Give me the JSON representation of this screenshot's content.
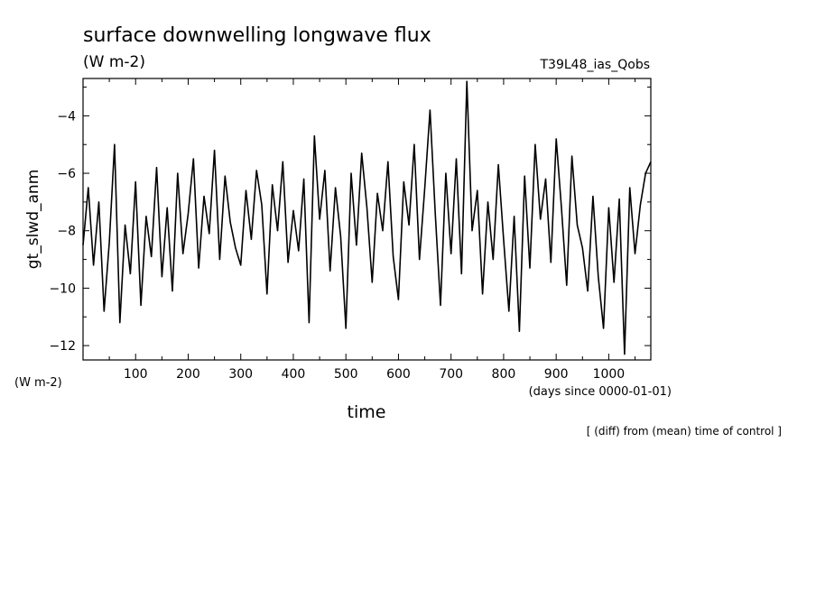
{
  "header": {
    "title": "surface downwelling longwave flux",
    "units": "(W m-2)",
    "run_id": "T39L48_ias_Qobs"
  },
  "footer": {
    "y_units": "(W m-2)",
    "x_units": "(days since 0000-01-01)",
    "x_title": "time",
    "note": "[ (diff) from (mean) time of control ]"
  },
  "chart_data": {
    "type": "line",
    "title": "surface downwelling longwave flux",
    "subtitle": "(W m-2)",
    "xlabel": "time",
    "ylabel": "gt_slwd_anm",
    "xlim": [
      0,
      1080
    ],
    "ylim": [
      -12.5,
      -2.7
    ],
    "x_ticks": [
      100,
      200,
      300,
      400,
      500,
      600,
      700,
      800,
      900,
      1000
    ],
    "y_ticks": [
      -12,
      -10,
      -8,
      -6,
      -4
    ],
    "grid": false,
    "legend": "none",
    "series": [
      {
        "color": "#000000",
        "x": [
          0,
          10,
          20,
          30,
          40,
          50,
          60,
          70,
          80,
          90,
          100,
          110,
          120,
          130,
          140,
          150,
          160,
          170,
          180,
          190,
          200,
          210,
          220,
          230,
          240,
          250,
          260,
          270,
          280,
          290,
          300,
          310,
          320,
          330,
          340,
          350,
          360,
          370,
          380,
          390,
          400,
          410,
          420,
          430,
          440,
          450,
          460,
          470,
          480,
          490,
          500,
          510,
          520,
          530,
          540,
          550,
          560,
          570,
          580,
          590,
          600,
          610,
          620,
          630,
          640,
          650,
          660,
          670,
          680,
          690,
          700,
          710,
          720,
          730,
          740,
          750,
          760,
          770,
          780,
          790,
          800,
          810,
          820,
          830,
          840,
          850,
          860,
          870,
          880,
          890,
          900,
          910,
          920,
          930,
          940,
          950,
          960,
          970,
          980,
          990,
          1000,
          1010,
          1020,
          1030,
          1040,
          1050,
          1060,
          1070,
          1080
        ],
        "values": [
          -8.5,
          -6.5,
          -9.2,
          -7.0,
          -10.8,
          -8.4,
          -5.0,
          -11.2,
          -7.8,
          -9.5,
          -6.3,
          -10.6,
          -7.5,
          -8.9,
          -5.8,
          -9.6,
          -7.2,
          -10.1,
          -6.0,
          -8.8,
          -7.4,
          -5.5,
          -9.3,
          -6.8,
          -8.1,
          -5.2,
          -9.0,
          -6.1,
          -7.7,
          -8.6,
          -9.2,
          -6.6,
          -8.3,
          -5.9,
          -7.1,
          -10.2,
          -6.4,
          -8.0,
          -5.6,
          -9.1,
          -7.3,
          -8.7,
          -6.2,
          -11.2,
          -4.7,
          -7.6,
          -5.9,
          -9.4,
          -6.5,
          -8.2,
          -11.4,
          -6.0,
          -8.5,
          -5.3,
          -7.2,
          -9.8,
          -6.7,
          -8.0,
          -5.6,
          -8.9,
          -10.4,
          -6.3,
          -7.8,
          -5.0,
          -9.0,
          -6.5,
          -3.8,
          -7.4,
          -10.6,
          -6.0,
          -8.8,
          -5.5,
          -9.5,
          -2.8,
          -8.0,
          -6.6,
          -10.2,
          -7.0,
          -9.0,
          -5.7,
          -8.3,
          -10.8,
          -7.5,
          -11.5,
          -6.1,
          -9.3,
          -5.0,
          -7.6,
          -6.2,
          -9.1,
          -4.8,
          -7.2,
          -9.9,
          -5.4,
          -7.8,
          -8.6,
          -10.1,
          -6.8,
          -9.6,
          -11.4,
          -7.2,
          -9.8,
          -6.9,
          -12.3,
          -6.5,
          -8.8,
          -7.1,
          -6.0,
          -5.6
        ]
      }
    ]
  }
}
